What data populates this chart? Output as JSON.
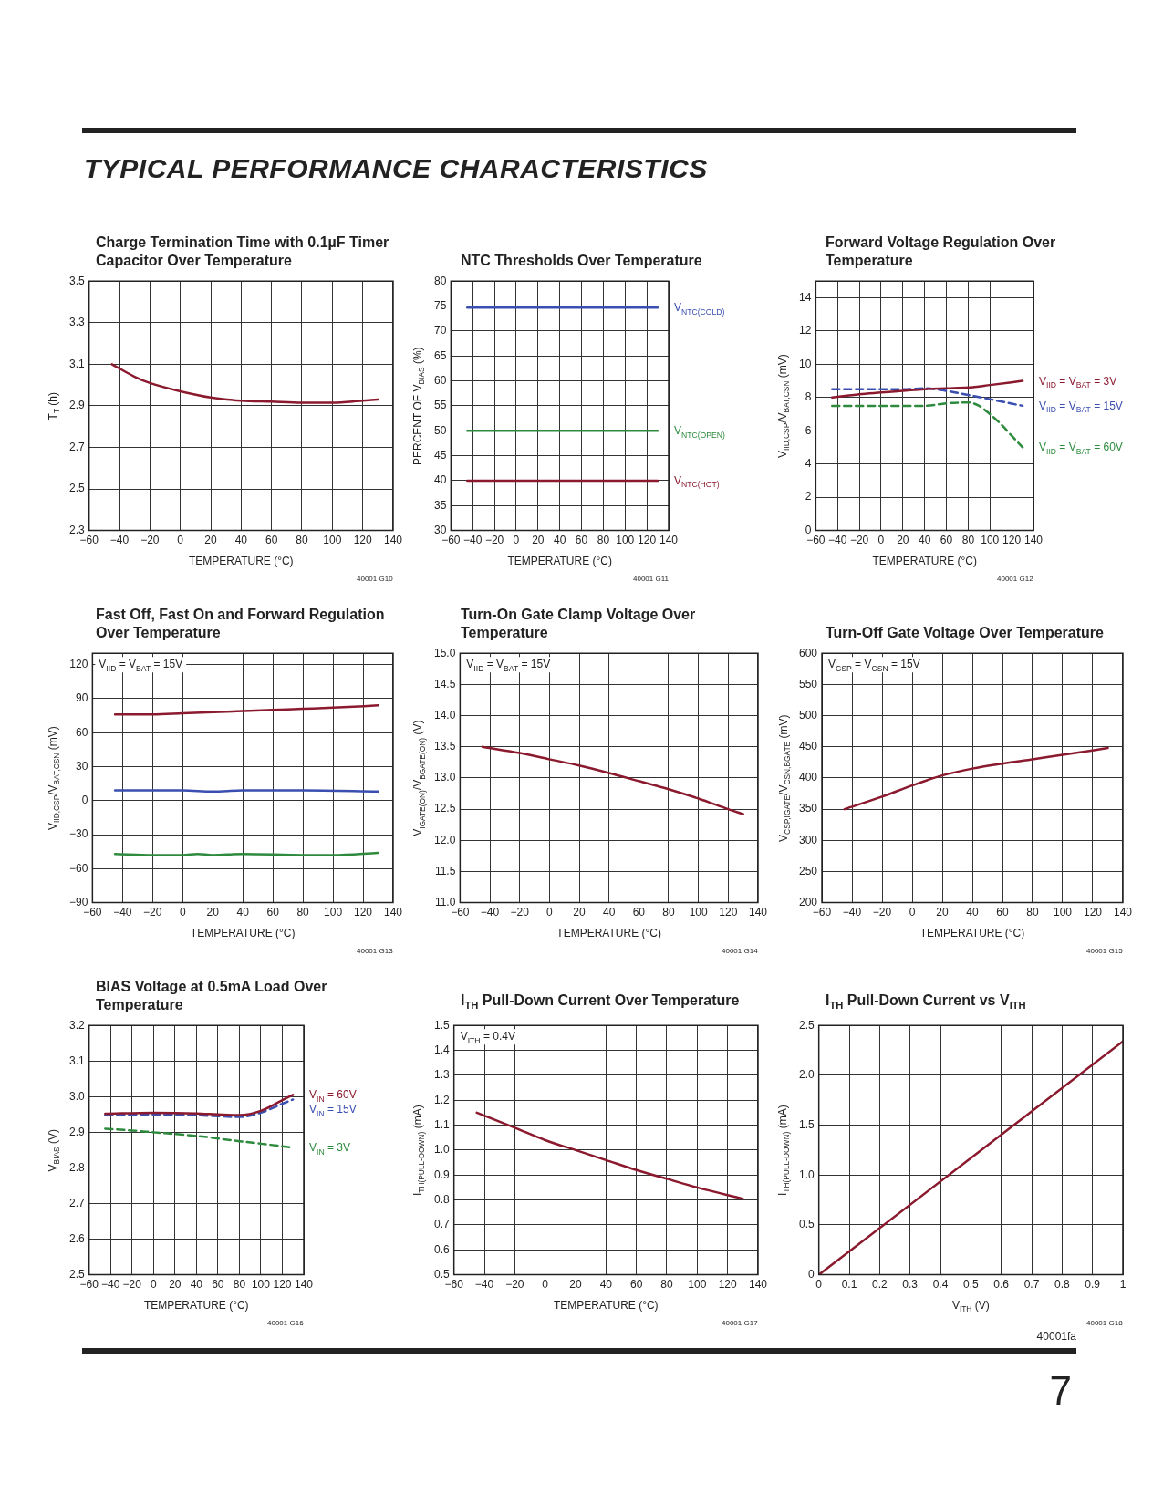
{
  "chart_data": [
    {
      "type": "line",
      "title": "Charge Termination Time with 0.1µF Timer Capacitor Over Temperature",
      "xlabel": "TEMPERATURE (°C)",
      "ylabel": "T$_{T}$ (h)",
      "xlim": [
        -60,
        140
      ],
      "xticks": [
        -60,
        -40,
        -20,
        0,
        20,
        40,
        60,
        80,
        100,
        120,
        140
      ],
      "ylim": [
        2.3,
        3.5
      ],
      "yticks": [
        2.3,
        2.5,
        2.7,
        2.9,
        3.1,
        3.3,
        3.5
      ],
      "grid": true,
      "marker": "none",
      "series": [
        {
          "color": "#8b1a2e",
          "x": [
            -45,
            -30,
            -20,
            0,
            20,
            40,
            60,
            80,
            100,
            120,
            130
          ],
          "values": [
            3.1,
            3.04,
            3.01,
            2.97,
            2.94,
            2.925,
            2.92,
            2.915,
            2.915,
            2.925,
            2.93
          ]
        }
      ],
      "annotations": [
        "40001 G10",
        "TYPICAL PERFORMANCE CHARACTERISTICS"
      ]
    },
    {
      "type": "line",
      "title": "NTC Thresholds Over Temperature",
      "xlabel": "TEMPERATURE (°C)",
      "ylabel": "PERCENT OF V$_{BIAS}$ (%)",
      "xlim": [
        -60,
        140
      ],
      "xticks": [
        -60,
        -40,
        -20,
        0,
        20,
        40,
        60,
        80,
        100,
        120,
        140
      ],
      "ylim": [
        30,
        80
      ],
      "yticks": [
        30,
        35,
        40,
        45,
        50,
        55,
        60,
        65,
        70,
        75,
        80
      ],
      "grid": true,
      "marker": "none",
      "series": [
        {
          "name": "V$_{NTC(COLD)}$",
          "color": "#3a4fb0",
          "x": [
            -45,
            130
          ],
          "values": [
            74.7,
            74.7
          ]
        },
        {
          "name": "V$_{NTC(OPEN)}$",
          "color": "#2e8b3e",
          "x": [
            -45,
            130
          ],
          "values": [
            50,
            50
          ]
        },
        {
          "name": "V$_{NTC(HOT)}$",
          "color": "#8b1a2e",
          "x": [
            -45,
            130
          ],
          "values": [
            40,
            40
          ]
        }
      ],
      "annotations": [
        "40001 G11"
      ]
    },
    {
      "type": "line",
      "title": "Forward Voltage Regulation Over Temperature",
      "xlabel": "TEMPERATURE (°C)",
      "ylabel": "V$_{IID,CSP}$/V$_{BAT,CSN}$ (mV)",
      "xlim": [
        -60,
        140
      ],
      "xticks": [
        -60,
        -40,
        -20,
        0,
        20,
        40,
        60,
        80,
        100,
        120,
        140
      ],
      "ylim": [
        0,
        15
      ],
      "yticks": [
        0,
        2,
        4,
        6,
        8,
        10,
        12,
        14
      ],
      "grid": true,
      "marker": "none",
      "series": [
        {
          "name": "V$_{IID}$ = V$_{BAT}$ = 3V",
          "color": "#8b1a2e",
          "x": [
            -45,
            -20,
            0,
            20,
            40,
            60,
            80,
            100,
            130
          ],
          "values": [
            8.0,
            8.2,
            8.3,
            8.4,
            8.5,
            8.55,
            8.6,
            8.75,
            9.0
          ]
        },
        {
          "name": "V$_{IID}$ = V$_{BAT}$ = 15V",
          "color": "#3a4fb0",
          "line_style": "dashed",
          "x": [
            -45,
            0,
            20,
            40,
            60,
            80,
            100,
            130
          ],
          "values": [
            8.5,
            8.5,
            8.5,
            8.55,
            8.4,
            8.15,
            7.9,
            7.5
          ]
        },
        {
          "name": "V$_{IID}$ = V$_{BAT}$ = 60V",
          "color": "#2e8b3e",
          "line_style": "dashed",
          "x": [
            -45,
            0,
            40,
            60,
            80,
            90,
            100,
            110,
            120,
            130
          ],
          "values": [
            7.5,
            7.5,
            7.5,
            7.65,
            7.7,
            7.5,
            7.0,
            6.4,
            5.7,
            5.0
          ]
        }
      ],
      "annotations": [
        "40001 G12"
      ]
    },
    {
      "type": "line",
      "title": "Fast Off, Fast On and Forward Regulation Over Temperature",
      "xlabel": "TEMPERATURE (°C)",
      "ylabel": "V$_{IID,CSP}$/V$_{BAT,CSN}$ (mV)",
      "xlim": [
        -60,
        140
      ],
      "xticks": [
        -60,
        -40,
        -20,
        0,
        20,
        40,
        60,
        80,
        100,
        120,
        140
      ],
      "ylim": [
        -90,
        130
      ],
      "yticks": [
        -90,
        -60,
        -30,
        0,
        30,
        60,
        90,
        120
      ],
      "grid": true,
      "marker": "none",
      "series": [
        {
          "color": "#8b1a2e",
          "x": [
            -45,
            -20,
            0,
            20,
            40,
            60,
            80,
            100,
            130
          ],
          "values": [
            76,
            76,
            77,
            78,
            79,
            80,
            81,
            82,
            84
          ]
        },
        {
          "color": "#3a4fb0",
          "x": [
            -45,
            0,
            20,
            40,
            80,
            130
          ],
          "values": [
            9,
            9,
            8,
            9,
            9,
            8
          ]
        },
        {
          "color": "#2e8b3e",
          "x": [
            -45,
            -20,
            0,
            10,
            20,
            40,
            80,
            100,
            130
          ],
          "values": [
            -47,
            -48,
            -48,
            -47,
            -48,
            -47,
            -48,
            -48,
            -46
          ]
        }
      ],
      "annotations": [
        "40001 G13",
        "V$_{IID}$ = V$_{BAT}$ = 15V"
      ]
    },
    {
      "type": "line",
      "title": "Turn-On Gate Clamp Voltage Over Temperature",
      "xlabel": "TEMPERATURE (°C)",
      "ylabel": "V$_{IGATE(ON)}$/V$_{BGATE(ON)}$ (V)",
      "xlim": [
        -60,
        140
      ],
      "xticks": [
        -60,
        -40,
        -20,
        0,
        20,
        40,
        60,
        80,
        100,
        120,
        140
      ],
      "ylim": [
        11,
        15
      ],
      "yticks": [
        {
          "value": 11,
          "label": "11.0"
        },
        11.5,
        {
          "value": 12,
          "label": "12.0"
        },
        12.5,
        {
          "value": 13,
          "label": "13.0"
        },
        13.5,
        {
          "value": 14,
          "label": "14.0"
        },
        14.5,
        {
          "value": 15,
          "label": "15.0"
        }
      ],
      "grid": true,
      "marker": "none",
      "series": [
        {
          "color": "#8b1a2e",
          "x": [
            -45,
            -20,
            0,
            20,
            40,
            60,
            80,
            100,
            120,
            130
          ],
          "values": [
            13.5,
            13.4,
            13.3,
            13.2,
            13.08,
            12.95,
            12.82,
            12.67,
            12.5,
            12.42
          ]
        }
      ],
      "annotations": [
        "40001 G14",
        "V$_{IID}$ = V$_{BAT}$ = 15V"
      ]
    },
    {
      "type": "line",
      "title": "Turn-Off Gate Voltage Over Temperature",
      "xlabel": "TEMPERATURE (°C)",
      "ylabel": "V$_{CSP,IGATE}$/V$_{CSN,BGATE}$ (mV)",
      "xlim": [
        -60,
        140
      ],
      "xticks": [
        -60,
        -40,
        -20,
        0,
        20,
        40,
        60,
        80,
        100,
        120,
        140
      ],
      "ylim": [
        200,
        600
      ],
      "yticks": [
        200,
        250,
        300,
        350,
        400,
        450,
        500,
        550,
        600
      ],
      "grid": true,
      "marker": "none",
      "series": [
        {
          "color": "#8b1a2e",
          "x": [
            -45,
            -20,
            0,
            20,
            40,
            60,
            80,
            100,
            130
          ],
          "values": [
            350,
            370,
            388,
            404,
            415,
            423,
            430,
            437,
            448
          ]
        }
      ],
      "annotations": [
        "40001 G15",
        "V$_{CSP}$ = V$_{CSN}$ = 15V"
      ]
    },
    {
      "type": "line",
      "title": "BIAS Voltage at 0.5mA Load Over Temperature",
      "xlabel": "TEMPERATURE (°C)",
      "ylabel": "V$_{BIAS}$ (V)",
      "xlim": [
        -60,
        140
      ],
      "xticks": [
        -60,
        -40,
        -20,
        0,
        20,
        40,
        60,
        80,
        100,
        120,
        140
      ],
      "ylim": [
        2.5,
        3.2
      ],
      "yticks": [
        2.5,
        2.6,
        2.7,
        2.8,
        2.9,
        {
          "value": 3,
          "label": "3.0"
        },
        3.1,
        3.2
      ],
      "grid": true,
      "marker": "none",
      "series": [
        {
          "name": "V$_{IN}$ = 60V",
          "color": "#8b1a2e",
          "x": [
            -45,
            0,
            40,
            60,
            80,
            100,
            120,
            130
          ],
          "values": [
            2.952,
            2.955,
            2.953,
            2.95,
            2.948,
            2.96,
            2.99,
            3.005
          ]
        },
        {
          "name": "V$_{IN}$ = 15V",
          "color": "#3a4fb0",
          "line_style": "dashed",
          "x": [
            -45,
            0,
            40,
            80,
            100,
            120,
            130
          ],
          "values": [
            2.948,
            2.95,
            2.948,
            2.943,
            2.955,
            2.98,
            2.992
          ]
        },
        {
          "name": "V$_{IN}$ = 3V",
          "color": "#2e8b3e",
          "line_style": "dashed",
          "x": [
            -45,
            -20,
            0,
            40,
            80,
            100,
            130
          ],
          "values": [
            2.91,
            2.905,
            2.9,
            2.89,
            2.875,
            2.868,
            2.857
          ]
        }
      ],
      "annotations": [
        "40001 G16"
      ]
    },
    {
      "type": "line",
      "title": "I$_{TH}$ Pull-Down Current Over Temperature",
      "xlabel": "TEMPERATURE (°C)",
      "ylabel": "I$_{TH(PULL-DOWN)}$ (mA)",
      "xlim": [
        -60,
        140
      ],
      "xticks": [
        -60,
        -40,
        -20,
        0,
        20,
        40,
        60,
        80,
        100,
        120,
        140
      ],
      "ylim": [
        0.5,
        1.5
      ],
      "yticks": [
        0.5,
        0.6,
        0.7,
        0.8,
        0.9,
        {
          "value": 1,
          "label": "1.0"
        },
        1.1,
        1.2,
        1.3,
        1.4,
        1.5
      ],
      "grid": true,
      "marker": "none",
      "series": [
        {
          "color": "#8b1a2e",
          "x": [
            -45,
            -20,
            0,
            20,
            40,
            60,
            80,
            100,
            130
          ],
          "values": [
            1.15,
            1.09,
            1.04,
            1.0,
            0.96,
            0.92,
            0.885,
            0.85,
            0.805
          ]
        }
      ],
      "annotations": [
        "40001 G17",
        "V$_{ITH}$ = 0.4V"
      ]
    },
    {
      "type": "line",
      "title": "I$_{TH}$ Pull-Down Current vs V$_{ITH}$",
      "xlabel": "V$_{ITH}$ (V)",
      "ylabel": "I$_{TH(PULL-DOWN)}$ (mA)",
      "xlim": [
        0,
        1
      ],
      "xticks": [
        0,
        0.1,
        0.2,
        0.3,
        0.4,
        0.5,
        0.6,
        0.7,
        0.8,
        0.9,
        1
      ],
      "ylim": [
        0,
        2.5
      ],
      "yticks": [
        0,
        0.5,
        {
          "value": 1,
          "label": "1.0"
        },
        1.5,
        {
          "value": 2,
          "label": "2.0"
        },
        2.5
      ],
      "grid": true,
      "marker": "none",
      "series": [
        {
          "color": "#8b1a2e",
          "x": [
            0,
            1
          ],
          "values": [
            0,
            2.34
          ]
        }
      ],
      "annotations": [
        "40001 G18",
        "40001fa",
        "7"
      ]
    }
  ]
}
